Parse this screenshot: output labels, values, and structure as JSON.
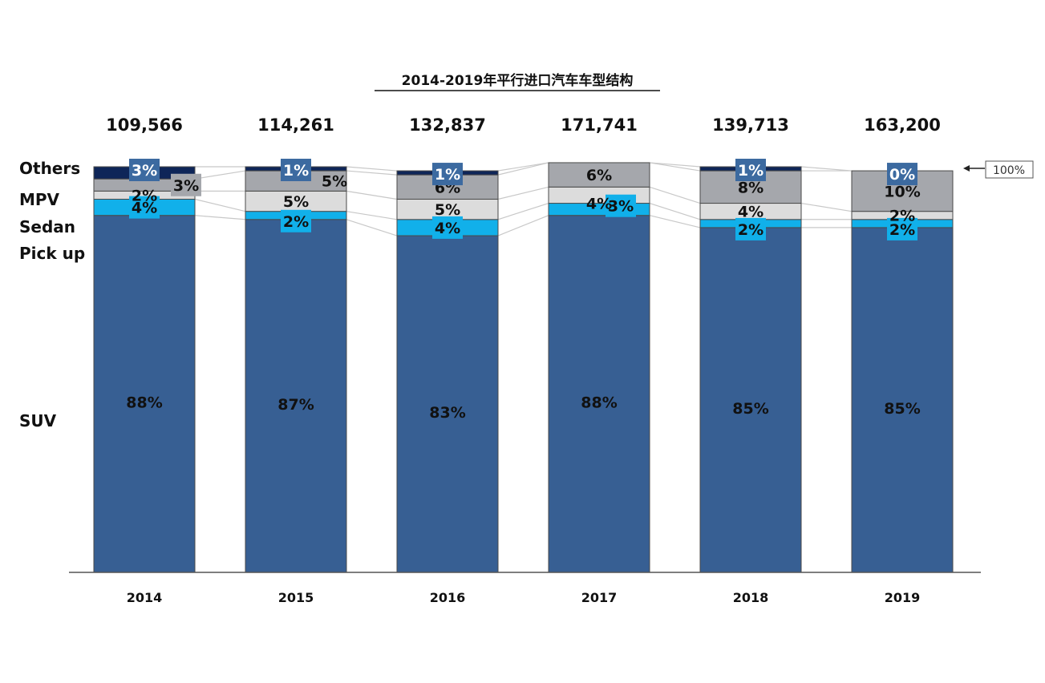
{
  "chart_data": {
    "type": "bar",
    "stacked": true,
    "normalized": true,
    "title": "2014-2019年平行进口汽车车型结构",
    "categories": [
      "2014",
      "2015",
      "2016",
      "2017",
      "2018",
      "2019"
    ],
    "totals": [
      "109,566",
      "114,261",
      "132,837",
      "171,741",
      "139,713",
      "163,200"
    ],
    "series": [
      {
        "name": "SUV",
        "values": [
          88,
          87,
          83,
          88,
          85,
          85
        ],
        "labels": [
          "88%",
          "87%",
          "83%",
          "88%",
          "85%",
          "85%"
        ]
      },
      {
        "name": "Pick up",
        "values": [
          4,
          2,
          4,
          3,
          2,
          2
        ],
        "labels": [
          "4%",
          "2%",
          "4%",
          "3%",
          "2%",
          "2%"
        ]
      },
      {
        "name": "Sedan",
        "values": [
          2,
          5,
          5,
          4,
          4,
          2
        ],
        "labels": [
          "2%",
          "5%",
          "5%",
          "4%",
          "4%",
          "2%"
        ]
      },
      {
        "name": "MPV",
        "values": [
          3,
          5,
          6,
          6,
          8,
          10
        ],
        "labels": [
          "3%",
          "5%",
          "6%",
          "6%",
          "8%",
          "10%"
        ]
      },
      {
        "name": "Others",
        "values": [
          3,
          1,
          1,
          0,
          1,
          0
        ],
        "labels": [
          "3%",
          "1%",
          "1%",
          "",
          "1%",
          "0%"
        ]
      }
    ],
    "legend_order": [
      "Others",
      "MPV",
      "Sedan",
      "Pick up",
      "SUV"
    ],
    "reference_label": "100%",
    "colors": {
      "SUV": "#375f93",
      "Pick up": "#11b0ea",
      "Sedan": "#dcdcdc",
      "MPV": "#a5a7ac",
      "Others": "#0e2558",
      "connector": "#c8c8c8",
      "label_box": "#3c6aa0"
    }
  }
}
